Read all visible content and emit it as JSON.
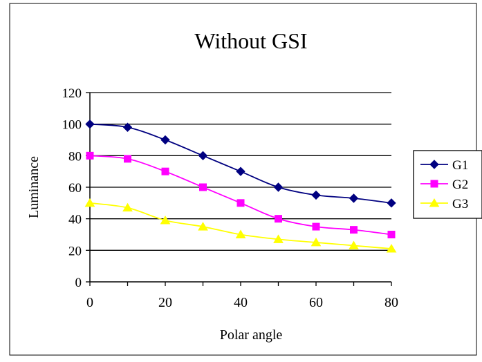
{
  "chart_data": {
    "type": "line",
    "title": "Without GSI",
    "xlabel": "Polar angle",
    "ylabel": "Luminance",
    "x": [
      0,
      10,
      20,
      30,
      40,
      50,
      60,
      70,
      80
    ],
    "x_ticks": [
      0,
      20,
      40,
      60,
      80
    ],
    "xlim": [
      0,
      80
    ],
    "y_ticks": [
      0,
      20,
      40,
      60,
      80,
      100,
      120
    ],
    "ylim": [
      0,
      120
    ],
    "grid": "horizontal",
    "legend_position": "right",
    "series": [
      {
        "name": "G1",
        "color": "#000080",
        "marker": "diamond",
        "values": [
          100,
          98,
          90,
          80,
          70,
          60,
          55,
          53,
          50
        ]
      },
      {
        "name": "G2",
        "color": "#ff00ff",
        "marker": "square",
        "values": [
          80,
          78,
          70,
          60,
          50,
          40,
          35,
          33,
          30
        ]
      },
      {
        "name": "G3",
        "color": "#ffff00",
        "marker": "triangle",
        "values": [
          50,
          47,
          39,
          35,
          30,
          27,
          25,
          23,
          21
        ]
      }
    ]
  }
}
